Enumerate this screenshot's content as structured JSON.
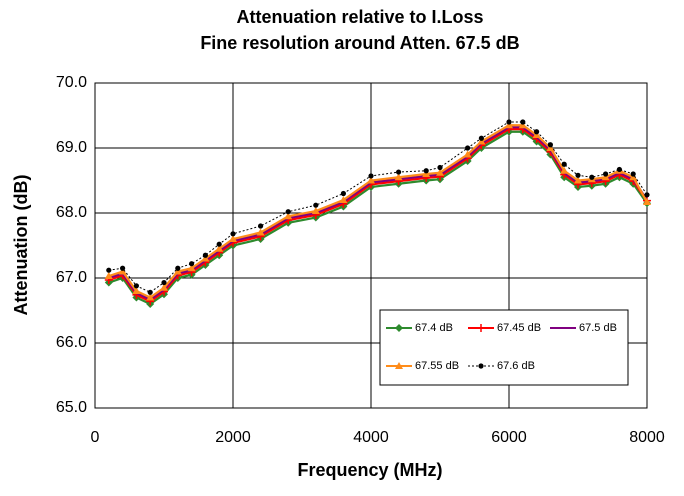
{
  "chart_data": {
    "type": "line",
    "title": [
      "Attenuation relative to I.Loss",
      "Fine resolution around Atten. 67.5 dB"
    ],
    "x_label": "Frequency (MHz)",
    "y_label": "Attenuation (dB)",
    "x": [
      200,
      400,
      600,
      800,
      1000,
      1200,
      1400,
      1600,
      1800,
      2000,
      2400,
      2800,
      3200,
      3600,
      4000,
      4400,
      4800,
      5000,
      5400,
      5600,
      6000,
      6200,
      6400,
      6600,
      6800,
      7000,
      7200,
      7400,
      7600,
      7800,
      8000
    ],
    "series": [
      {
        "name": "67.4 dB",
        "color": "#2e8b2e",
        "marker": "diamond",
        "dash": "solid",
        "values": [
          66.93,
          67.0,
          66.7,
          66.6,
          66.75,
          67.0,
          67.05,
          67.2,
          67.35,
          67.5,
          67.6,
          67.85,
          67.93,
          68.1,
          68.4,
          68.45,
          68.5,
          68.52,
          68.8,
          69.0,
          69.25,
          69.25,
          69.1,
          68.9,
          68.55,
          68.4,
          68.42,
          68.45,
          68.55,
          68.45,
          68.15
        ]
      },
      {
        "name": "67.45 dB",
        "color": "#ff0000",
        "marker": "plus",
        "dash": "solid",
        "values": [
          66.97,
          67.04,
          66.74,
          66.64,
          66.79,
          67.04,
          67.09,
          67.24,
          67.39,
          67.54,
          67.64,
          67.89,
          67.97,
          68.14,
          68.44,
          68.49,
          68.54,
          68.56,
          68.84,
          69.04,
          69.29,
          69.29,
          69.14,
          68.94,
          68.59,
          68.44,
          68.46,
          68.49,
          68.59,
          68.49,
          68.19
        ]
      },
      {
        "name": "67.5 dB",
        "color": "#800080",
        "marker": "none",
        "dash": "solid",
        "values": [
          67.0,
          67.07,
          66.77,
          66.67,
          66.82,
          67.07,
          67.12,
          67.27,
          67.42,
          67.57,
          67.67,
          67.92,
          68.0,
          68.17,
          68.47,
          68.52,
          68.57,
          68.59,
          68.87,
          69.07,
          69.32,
          69.32,
          69.17,
          68.97,
          68.62,
          68.47,
          68.49,
          68.52,
          68.62,
          68.52,
          68.2
        ]
      },
      {
        "name": "67.55 dB",
        "color": "#ff8c1a",
        "marker": "triangle",
        "dash": "solid",
        "values": [
          67.03,
          67.1,
          66.8,
          66.7,
          66.85,
          67.1,
          67.15,
          67.3,
          67.45,
          67.6,
          67.7,
          67.95,
          68.03,
          68.2,
          68.5,
          68.55,
          68.6,
          68.62,
          68.9,
          69.1,
          69.35,
          69.35,
          69.2,
          69.0,
          68.65,
          68.5,
          68.52,
          68.55,
          68.65,
          68.55,
          68.17
        ]
      },
      {
        "name": "67.6 dB",
        "color": "#000000",
        "marker": "circle",
        "dash": "dotted",
        "values": [
          67.12,
          67.15,
          66.88,
          66.78,
          66.93,
          67.15,
          67.22,
          67.35,
          67.52,
          67.68,
          67.8,
          68.02,
          68.12,
          68.3,
          68.57,
          68.63,
          68.65,
          68.7,
          69.0,
          69.15,
          69.4,
          69.4,
          69.25,
          69.05,
          68.75,
          68.58,
          68.55,
          68.6,
          68.67,
          68.6,
          68.28
        ]
      }
    ],
    "xlim": [
      0,
      8000
    ],
    "xticks": [
      0,
      2000,
      4000,
      6000,
      8000
    ],
    "ylim": [
      65,
      70
    ],
    "yticks": [
      {
        "value": 65,
        "label": "65.0"
      },
      {
        "value": 66,
        "label": "66.0"
      },
      {
        "value": 67,
        "label": "67.0"
      },
      {
        "value": 68,
        "label": "68.0"
      },
      {
        "value": 69,
        "label": "69.0"
      },
      {
        "value": 70,
        "label": "70.0"
      }
    ],
    "grid": true,
    "legend_position": "lower right"
  }
}
